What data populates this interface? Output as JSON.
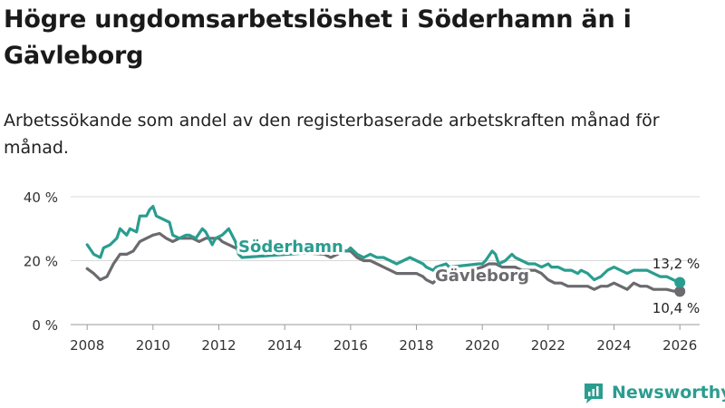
{
  "title": "Högre ungdomsarbetslöshet i Söderhamn än i Gävleborg",
  "subtitle": "Arbetssökande som andel av den registerbaserade arbetskraften månad för månad.",
  "brand": {
    "name": "Newsworthy",
    "color": "#2a9d8f"
  },
  "chart_data": {
    "type": "line",
    "x_domain": [
      2007.5,
      2026.6
    ],
    "ylim": [
      0,
      40
    ],
    "y_ticks": [
      0,
      20,
      40
    ],
    "y_tick_labels": [
      "0 %",
      "20 %",
      "40 %"
    ],
    "x_ticks": [
      2008,
      2010,
      2012,
      2014,
      2016,
      2018,
      2020,
      2022,
      2024,
      2026
    ],
    "x_tick_labels": [
      "2008",
      "2010",
      "2012",
      "2014",
      "2016",
      "2018",
      "2020",
      "2022",
      "2024",
      "2026"
    ],
    "grid": "horizontal",
    "series": [
      {
        "name": "Söderhamn",
        "color": "#2a9d8f",
        "end_label": "13,2 %",
        "points": [
          [
            2008.0,
            25
          ],
          [
            2008.2,
            22
          ],
          [
            2008.4,
            21
          ],
          [
            2008.5,
            24
          ],
          [
            2008.7,
            25
          ],
          [
            2008.9,
            27
          ],
          [
            2009.0,
            30
          ],
          [
            2009.2,
            28
          ],
          [
            2009.3,
            30
          ],
          [
            2009.5,
            29
          ],
          [
            2009.6,
            34
          ],
          [
            2009.8,
            34
          ],
          [
            2009.9,
            36
          ],
          [
            2010.0,
            37
          ],
          [
            2010.1,
            34
          ],
          [
            2010.3,
            33
          ],
          [
            2010.5,
            32
          ],
          [
            2010.6,
            28
          ],
          [
            2010.8,
            27
          ],
          [
            2011.0,
            28
          ],
          [
            2011.1,
            28
          ],
          [
            2011.3,
            27
          ],
          [
            2011.5,
            30
          ],
          [
            2011.6,
            29
          ],
          [
            2011.8,
            25
          ],
          [
            2011.9,
            27
          ],
          [
            2012.1,
            28
          ],
          [
            2012.2,
            29
          ],
          [
            2012.3,
            30
          ],
          [
            2012.5,
            26
          ],
          [
            2012.6,
            22
          ],
          [
            2012.7,
            21
          ],
          [
            2015.5,
            23
          ],
          [
            2015.7,
            23
          ],
          [
            2015.9,
            23
          ],
          [
            2016.0,
            24
          ],
          [
            2016.2,
            22
          ],
          [
            2016.4,
            21
          ],
          [
            2016.6,
            22
          ],
          [
            2016.8,
            21
          ],
          [
            2017.0,
            21
          ],
          [
            2017.2,
            20
          ],
          [
            2017.4,
            19
          ],
          [
            2017.6,
            20
          ],
          [
            2017.8,
            21
          ],
          [
            2018.0,
            20
          ],
          [
            2018.2,
            19
          ],
          [
            2018.3,
            18
          ],
          [
            2018.5,
            17
          ],
          [
            2018.6,
            18
          ],
          [
            2018.9,
            19
          ],
          [
            2019.0,
            18
          ],
          [
            2019.9,
            19
          ],
          [
            2020.0,
            19
          ],
          [
            2020.1,
            20
          ],
          [
            2020.3,
            23
          ],
          [
            2020.4,
            22
          ],
          [
            2020.5,
            19
          ],
          [
            2020.7,
            20
          ],
          [
            2020.9,
            22
          ],
          [
            2021.0,
            21
          ],
          [
            2021.2,
            20
          ],
          [
            2021.4,
            19
          ],
          [
            2021.6,
            19
          ],
          [
            2021.8,
            18
          ],
          [
            2022.0,
            19
          ],
          [
            2022.1,
            18
          ],
          [
            2022.3,
            18
          ],
          [
            2022.5,
            17
          ],
          [
            2022.7,
            17
          ],
          [
            2022.9,
            16
          ],
          [
            2023.0,
            17
          ],
          [
            2023.2,
            16
          ],
          [
            2023.4,
            14
          ],
          [
            2023.6,
            15
          ],
          [
            2023.8,
            17
          ],
          [
            2024.0,
            18
          ],
          [
            2024.2,
            17
          ],
          [
            2024.4,
            16
          ],
          [
            2024.6,
            17
          ],
          [
            2024.8,
            17
          ],
          [
            2025.0,
            17
          ],
          [
            2025.2,
            16
          ],
          [
            2025.4,
            15
          ],
          [
            2025.6,
            15
          ],
          [
            2025.8,
            14
          ],
          [
            2026.0,
            13.2
          ]
        ]
      },
      {
        "name": "Gävleborg",
        "color": "#6b6b6f",
        "end_label": "10,4 %",
        "points": [
          [
            2008.0,
            17.5
          ],
          [
            2008.2,
            16
          ],
          [
            2008.4,
            14
          ],
          [
            2008.6,
            15
          ],
          [
            2008.8,
            19
          ],
          [
            2009.0,
            22
          ],
          [
            2009.2,
            22
          ],
          [
            2009.4,
            23
          ],
          [
            2009.6,
            26
          ],
          [
            2009.8,
            27
          ],
          [
            2010.0,
            28
          ],
          [
            2010.2,
            28.5
          ],
          [
            2010.4,
            27
          ],
          [
            2010.6,
            26
          ],
          [
            2010.8,
            27
          ],
          [
            2011.0,
            27
          ],
          [
            2011.2,
            27
          ],
          [
            2011.4,
            26
          ],
          [
            2011.6,
            27
          ],
          [
            2011.8,
            27
          ],
          [
            2012.0,
            27
          ],
          [
            2012.1,
            26
          ],
          [
            2012.3,
            25
          ],
          [
            2012.5,
            24
          ],
          [
            2015.2,
            22
          ],
          [
            2015.4,
            21
          ],
          [
            2015.6,
            22
          ],
          [
            2015.8,
            23
          ],
          [
            2016.0,
            23
          ],
          [
            2016.2,
            21
          ],
          [
            2016.4,
            20
          ],
          [
            2016.6,
            20
          ],
          [
            2016.8,
            19
          ],
          [
            2017.0,
            18
          ],
          [
            2017.2,
            17
          ],
          [
            2017.4,
            16
          ],
          [
            2017.6,
            16
          ],
          [
            2017.8,
            16
          ],
          [
            2018.0,
            16
          ],
          [
            2018.2,
            15
          ],
          [
            2018.3,
            14
          ],
          [
            2018.5,
            13
          ],
          [
            2018.6,
            14
          ],
          [
            2020.0,
            18
          ],
          [
            2020.2,
            19
          ],
          [
            2020.4,
            19
          ],
          [
            2020.6,
            18
          ],
          [
            2020.8,
            18
          ],
          [
            2021.0,
            18
          ],
          [
            2021.2,
            17
          ],
          [
            2021.4,
            17
          ],
          [
            2021.6,
            17
          ],
          [
            2021.8,
            16
          ],
          [
            2022.0,
            14
          ],
          [
            2022.2,
            13
          ],
          [
            2022.4,
            13
          ],
          [
            2022.6,
            12
          ],
          [
            2022.8,
            12
          ],
          [
            2023.0,
            12
          ],
          [
            2023.2,
            12
          ],
          [
            2023.4,
            11
          ],
          [
            2023.6,
            12
          ],
          [
            2023.8,
            12
          ],
          [
            2024.0,
            13
          ],
          [
            2024.2,
            12
          ],
          [
            2024.4,
            11
          ],
          [
            2024.6,
            13
          ],
          [
            2024.8,
            12
          ],
          [
            2025.0,
            12
          ],
          [
            2025.2,
            11
          ],
          [
            2025.4,
            11
          ],
          [
            2025.6,
            11
          ],
          [
            2025.8,
            10.5
          ],
          [
            2026.0,
            10.4
          ]
        ]
      }
    ]
  }
}
